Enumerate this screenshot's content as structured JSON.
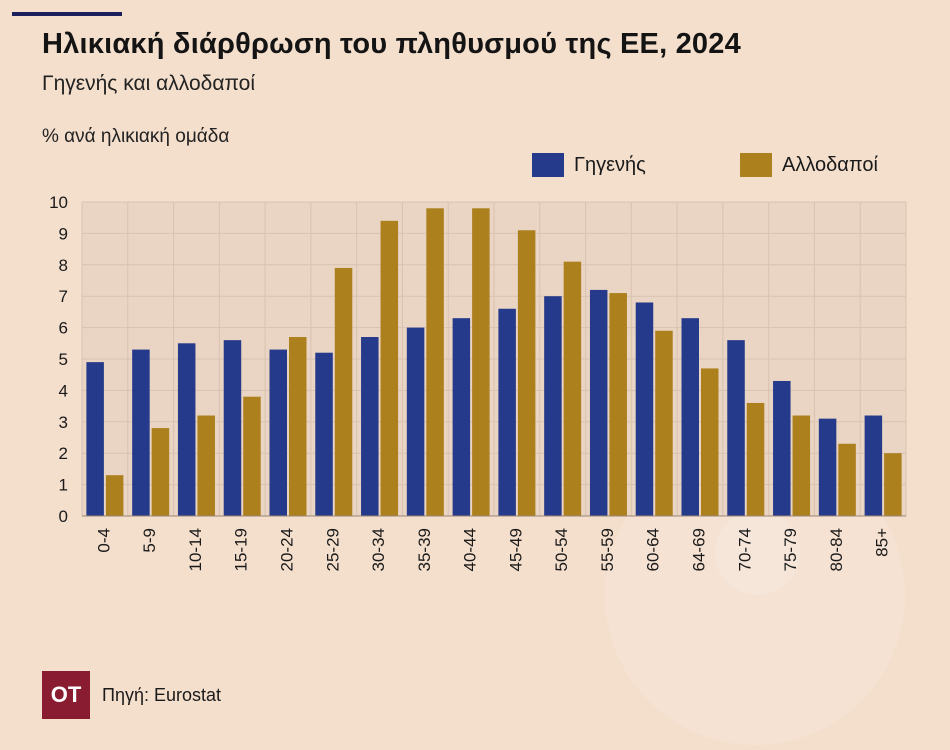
{
  "header": {
    "title": "Ηλικιακή διάρθρωση του πληθυσμού της ΕΕ, 2024",
    "subtitle": "Γηγενής και αλλοδαποί",
    "unit_label": "% ανά ηλικιακή ομάδα"
  },
  "footer": {
    "logo_text": "OT",
    "source": "Πηγή: Eurostat"
  },
  "colors": {
    "background": "#f4dfcd",
    "plot_background": "#ead4c3",
    "native": "#253a8a",
    "foreign": "#ad801e",
    "accent_line": "#1b1f5c",
    "logo": "#8a1c31"
  },
  "chart_data": {
    "type": "bar",
    "categories": [
      "0-4",
      "5-9",
      "10-14",
      "15-19",
      "20-24",
      "25-29",
      "30-34",
      "35-39",
      "40-44",
      "45-49",
      "50-54",
      "55-59",
      "60-64",
      "64-69",
      "70-74",
      "75-79",
      "80-84",
      "85+"
    ],
    "series": [
      {
        "name": "Γηγενής",
        "color": "#253a8a",
        "values": [
          4.9,
          5.3,
          5.5,
          5.6,
          5.3,
          5.2,
          5.7,
          6.0,
          6.3,
          6.6,
          7.0,
          7.2,
          6.8,
          6.3,
          5.6,
          4.3,
          3.1,
          3.2
        ]
      },
      {
        "name": "Αλλοδαποί",
        "color": "#ad801e",
        "values": [
          1.3,
          2.8,
          3.2,
          3.8,
          5.7,
          7.9,
          9.4,
          9.8,
          9.8,
          9.1,
          8.1,
          7.1,
          5.9,
          4.7,
          3.6,
          3.2,
          2.3,
          2.0
        ]
      }
    ],
    "yticks": [
      0,
      1,
      2,
      3,
      4,
      5,
      6,
      7,
      8,
      9,
      10
    ],
    "ylim": [
      0,
      10
    ],
    "grid": true,
    "legend": "top-right"
  }
}
